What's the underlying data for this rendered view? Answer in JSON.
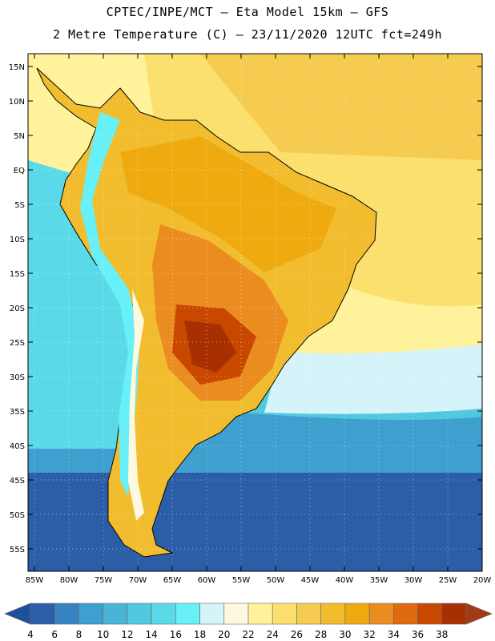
{
  "header": {
    "line1": "CPTEC/INPE/MCT –  Eta Model 15km – GFS",
    "line2": "2 Metre Temperature (C) – 23/11/2020 12UTC fct=249h"
  },
  "map": {
    "lat_labels": [
      "15N",
      "10N",
      "5N",
      "EQ",
      "5S",
      "10S",
      "15S",
      "20S",
      "25S",
      "30S",
      "35S",
      "40S",
      "45S",
      "50S",
      "55S"
    ],
    "lon_labels": [
      "85W",
      "80W",
      "75W",
      "70W",
      "65W",
      "60W",
      "55W",
      "50W",
      "45W",
      "40W",
      "35W",
      "30W",
      "25W",
      "20W"
    ]
  },
  "colorbar": {
    "labels": [
      "4",
      "6",
      "8",
      "10",
      "12",
      "14",
      "16",
      "18",
      "20",
      "22",
      "24",
      "26",
      "28",
      "30",
      "32",
      "34",
      "36",
      "38"
    ],
    "colors": [
      "#2c5ea8",
      "#3782c0",
      "#3fa0cf",
      "#49b4d8",
      "#52c8e0",
      "#5ad9e8",
      "#67f0f8",
      "#d4f4fa",
      "#fff8e0",
      "#fff29a",
      "#fbe070",
      "#f5cc50",
      "#f1bd2e",
      "#efaa10",
      "#ea8c20",
      "#e06a10",
      "#c84800",
      "#a83000"
    ],
    "low_color": "#1e4f9c",
    "high_color": "#a23a14"
  }
}
